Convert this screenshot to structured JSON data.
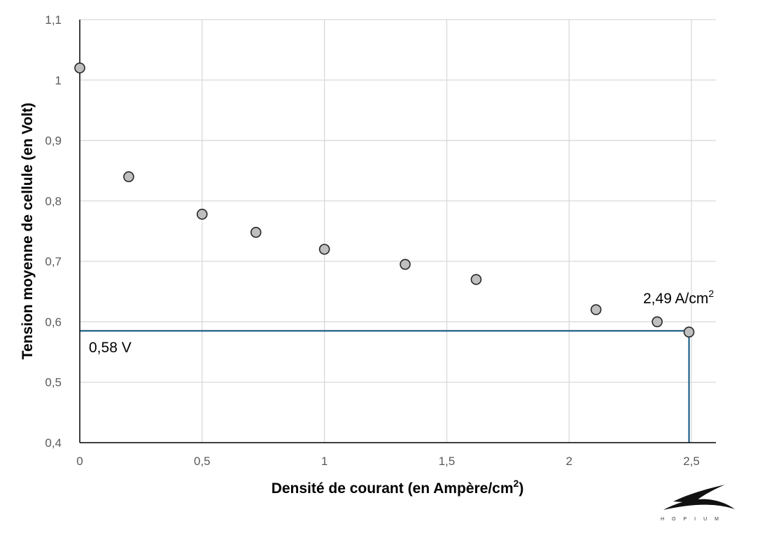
{
  "chart_data": {
    "type": "scatter",
    "title": "",
    "xlabel": "Densité de courant (en Ampère/cm",
    "xlabel_sup": "2",
    "xlabel_end": ")",
    "ylabel": "Tension moyenne de cellule (en Volt)",
    "xlim": [
      0,
      2.6
    ],
    "ylim": [
      0.4,
      1.1
    ],
    "x_ticks": [
      0,
      0.5,
      1,
      1.5,
      2,
      2.5
    ],
    "x_tick_labels": [
      "0",
      "0,5",
      "1",
      "1,5",
      "2",
      "2,5"
    ],
    "y_ticks": [
      0.4,
      0.5,
      0.6,
      0.7,
      0.8,
      0.9,
      1.0,
      1.1
    ],
    "y_tick_labels": [
      "0,4",
      "0,5",
      "0,6",
      "0,7",
      "0,8",
      "0,9",
      "1",
      "1,1"
    ],
    "grid": true,
    "points": [
      {
        "x": 0.0,
        "y": 1.02
      },
      {
        "x": 0.2,
        "y": 0.84
      },
      {
        "x": 0.5,
        "y": 0.778
      },
      {
        "x": 0.72,
        "y": 0.748
      },
      {
        "x": 1.0,
        "y": 0.72
      },
      {
        "x": 1.33,
        "y": 0.695
      },
      {
        "x": 1.62,
        "y": 0.67
      },
      {
        "x": 2.11,
        "y": 0.62
      },
      {
        "x": 2.36,
        "y": 0.6
      },
      {
        "x": 2.49,
        "y": 0.583
      }
    ],
    "reference_point": {
      "x": 2.49,
      "y": 0.585
    },
    "annotations": {
      "voltage_label": "0,58 V",
      "current_label": "2,49 A/cm",
      "current_label_sup": "2"
    },
    "colors": {
      "reference_line": "#1f5f86",
      "marker_fill": "#bfbfbf",
      "marker_stroke": "#262626",
      "grid": "#d9d9d9"
    }
  },
  "logo": {
    "icon": "hopium-logo-icon",
    "text": "HOPIUM"
  }
}
